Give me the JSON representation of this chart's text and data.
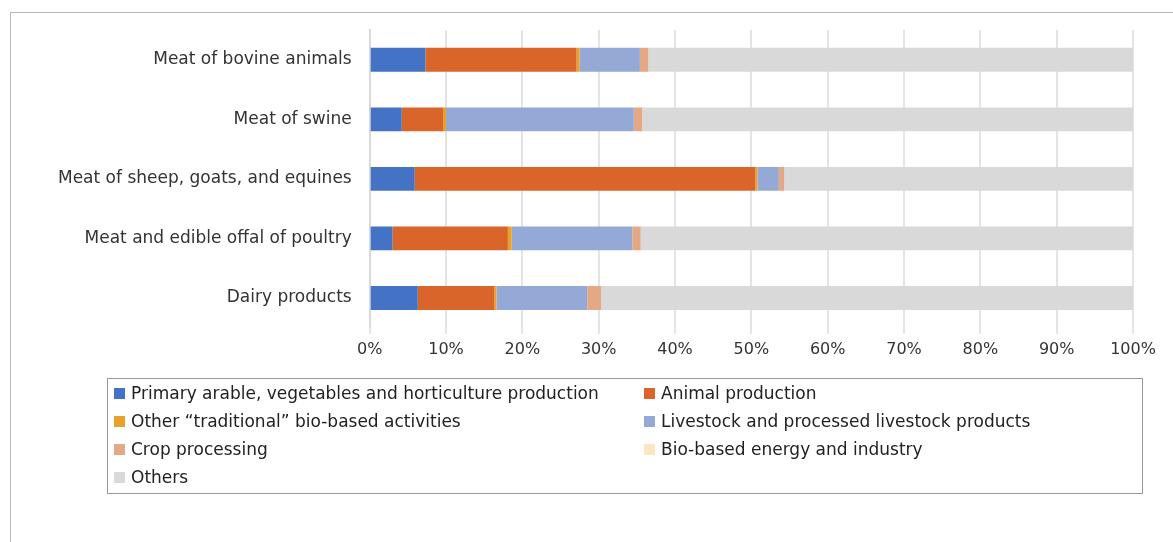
{
  "chart_data": {
    "type": "bar",
    "orientation": "horizontal",
    "stacked": true,
    "categories": [
      "Meat of bovine animals",
      "Meat of swine",
      "Meat of sheep, goats, and equines",
      "Meat and edible offal of poultry",
      "Dairy products"
    ],
    "series": [
      {
        "name": "Primary arable, vegetables and horticulture production",
        "color": "#4472c4",
        "values": [
          7.3,
          4.2,
          5.9,
          3.0,
          6.3
        ]
      },
      {
        "name": "Animal production",
        "color": "#d9652b",
        "values": [
          19.8,
          5.4,
          44.6,
          15.1,
          10.0
        ]
      },
      {
        "name": "Other “traditional” bio-based activities",
        "color": "#e9a229",
        "values": [
          0.4,
          0.4,
          0.3,
          0.5,
          0.3
        ]
      },
      {
        "name": "Livestock and processed livestock products",
        "color": "#94a9d6",
        "values": [
          7.9,
          24.6,
          2.8,
          15.8,
          11.9
        ]
      },
      {
        "name": "Crop processing",
        "color": "#e5a884",
        "values": [
          1.1,
          1.1,
          0.7,
          1.1,
          1.8
        ]
      },
      {
        "name": "Bio-based energy and industry",
        "color": "#fbe5c2",
        "values": [
          0,
          0,
          0,
          0,
          0
        ]
      },
      {
        "name": "Others",
        "color": "#d9d9d9",
        "values": [
          63.5,
          64.3,
          45.7,
          64.5,
          69.7
        ]
      }
    ],
    "xlim": [
      0,
      100
    ],
    "xticks": [
      {
        "value": 0,
        "label": "0%"
      },
      {
        "value": 10,
        "label": "10%"
      },
      {
        "value": 20,
        "label": "20%"
      },
      {
        "value": 30,
        "label": "30%"
      },
      {
        "value": 40,
        "label": "40%"
      },
      {
        "value": 50,
        "label": "50%"
      },
      {
        "value": 60,
        "label": "60%"
      },
      {
        "value": 70,
        "label": "70%"
      },
      {
        "value": 80,
        "label": "80%"
      },
      {
        "value": 90,
        "label": "90%"
      },
      {
        "value": 100,
        "label": "100%"
      }
    ],
    "grid": "x",
    "legend": "bottom"
  }
}
